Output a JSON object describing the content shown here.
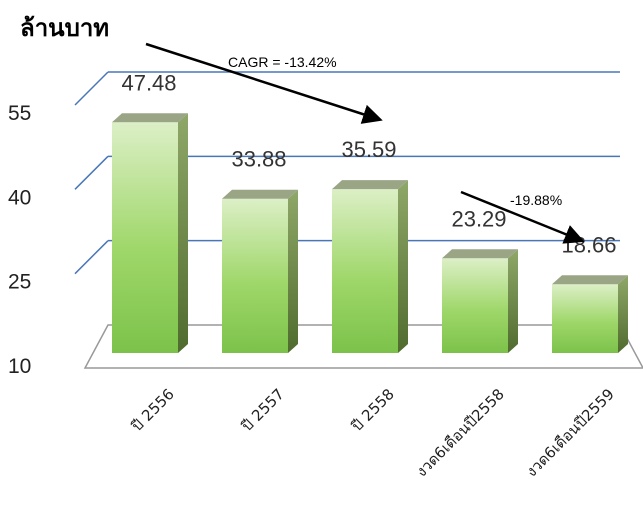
{
  "chart_data": {
    "type": "bar",
    "title": "ล้านบาท",
    "categories": [
      "ปี 2556",
      "ปี 2557",
      "ปี 2558",
      "งวด6เดือนปี2558",
      "งวด6เดือนปี2559"
    ],
    "values": [
      47.48,
      33.88,
      35.59,
      23.29,
      18.66
    ],
    "ylim": [
      10,
      55
    ],
    "yticks": [
      10,
      25,
      40,
      55
    ],
    "grid": true,
    "colors": {
      "bar_top": "#d8ecc0",
      "bar_mid": "#8fcf5c",
      "bar_side": "#5f7a3a",
      "bar_cap": "#9aa586",
      "grid": "#4a76b8"
    },
    "annotations": [
      {
        "text": "CAGR = -13.42%",
        "from_category": "ปี 2556",
        "to_category": "ปี 2558"
      },
      {
        "text": "-19.88%",
        "from_category": "งวด6เดือนปี2558",
        "to_category": "งวด6เดือนปี2559"
      }
    ]
  }
}
